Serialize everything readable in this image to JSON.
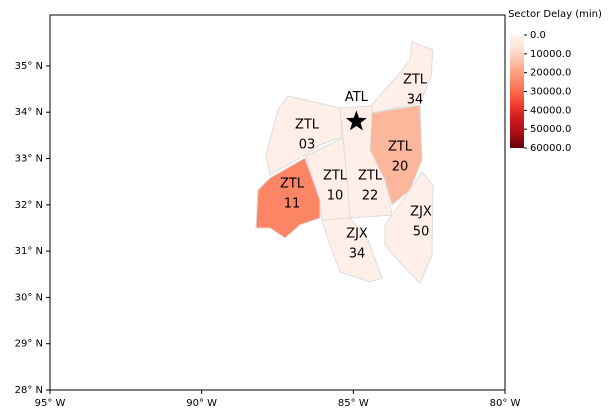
{
  "chart_data": {
    "type": "choropleth",
    "xlim": [
      -95,
      -80
    ],
    "ylim": [
      28,
      36.1
    ],
    "xticks": [
      {
        "value": -95,
        "label": "95° W"
      },
      {
        "value": -90,
        "label": "90° W"
      },
      {
        "value": -85,
        "label": "85° W"
      },
      {
        "value": -80,
        "label": "80° W"
      }
    ],
    "yticks": [
      {
        "value": 28,
        "label": "28° N"
      },
      {
        "value": 29,
        "label": "29° N"
      },
      {
        "value": 30,
        "label": "30° N"
      },
      {
        "value": 31,
        "label": "31° N"
      },
      {
        "value": 32,
        "label": "32° N"
      },
      {
        "value": 33,
        "label": "33° N"
      },
      {
        "value": 34,
        "label": "34° N"
      },
      {
        "value": 35,
        "label": "35° N"
      }
    ],
    "colorbar": {
      "title": "Sector Delay (min)",
      "colormap": "Reds",
      "lim": [
        0,
        60000
      ],
      "ticks": [
        {
          "value": 0,
          "label": "0.0"
        },
        {
          "value": 10000,
          "label": "10000.0"
        },
        {
          "value": 20000,
          "label": "20000.0"
        },
        {
          "value": 30000,
          "label": "30000.0"
        },
        {
          "value": 40000,
          "label": "40000.0"
        },
        {
          "value": 50000,
          "label": "50000.0"
        },
        {
          "value": 60000,
          "label": "60000.0"
        }
      ]
    },
    "sectors": [
      {
        "center": "ZTL",
        "number": "34",
        "value": 2000
      },
      {
        "center": "ZTL",
        "number": "03",
        "value": 2000
      },
      {
        "center": "ZTL",
        "number": "22",
        "value": 2000
      },
      {
        "center": "ZTL",
        "number": "20",
        "value": 16000
      },
      {
        "center": "ZTL",
        "number": "10",
        "value": 2000
      },
      {
        "center": "ZTL",
        "number": "11",
        "value": 25000
      },
      {
        "center": "ZJX",
        "number": "34",
        "value": 2000
      },
      {
        "center": "ZJX",
        "number": "50",
        "value": 2000
      }
    ],
    "airport": {
      "label": "ATL",
      "lon": -84.9,
      "lat": 33.8
    }
  }
}
